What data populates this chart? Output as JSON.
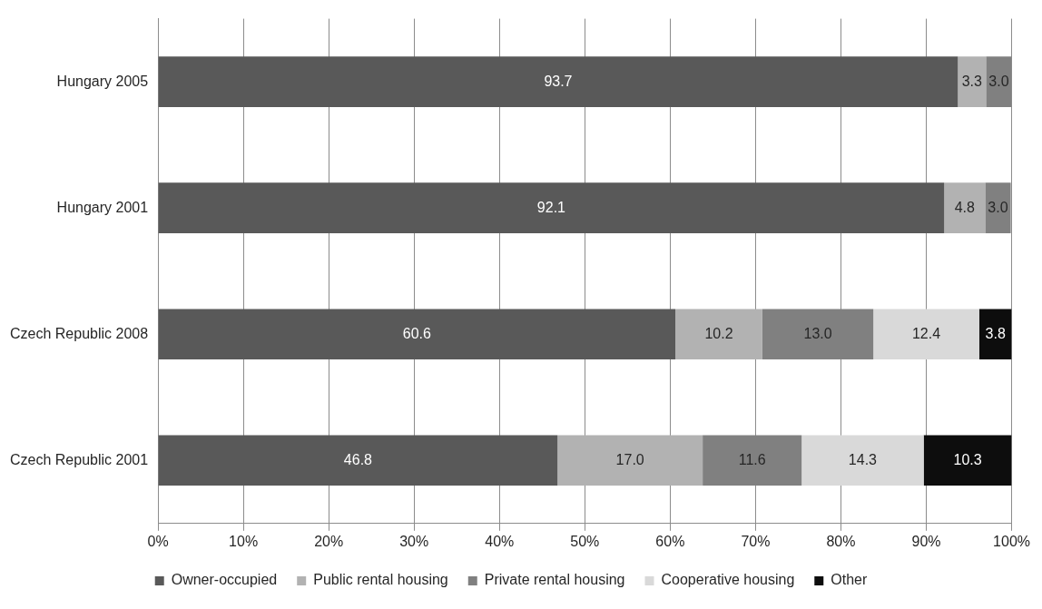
{
  "chart_data": {
    "type": "bar",
    "orientation": "horizontal",
    "stacked": true,
    "categories": [
      "Hungary 2005",
      "Hungary 2001",
      "Czech Republic 2008",
      "Czech Republic 2001"
    ],
    "series": [
      {
        "name": "Owner-occupied",
        "color": "#595959",
        "values": [
          93.7,
          92.1,
          60.6,
          46.8
        ],
        "value_labels": [
          "93.7",
          "92.1",
          "60.6",
          "46.8"
        ]
      },
      {
        "name": "Public rental housing",
        "color": "#b2b2b2",
        "values": [
          3.3,
          4.8,
          10.2,
          17.0
        ],
        "value_labels": [
          "3.3",
          "4.8",
          "10.2",
          "17.0"
        ]
      },
      {
        "name": "Private rental housing",
        "color": "#808080",
        "values": [
          3.0,
          3.0,
          13.0,
          11.6
        ],
        "value_labels": [
          "3.0",
          "3.0",
          "13.0",
          "11.6"
        ]
      },
      {
        "name": "Cooperative housing",
        "color": "#d9d9d9",
        "values": [
          null,
          null,
          12.4,
          14.3
        ],
        "value_labels": [
          null,
          null,
          "12.4",
          "14.3"
        ]
      },
      {
        "name": "Other",
        "color": "#0d0d0d",
        "values": [
          null,
          null,
          3.8,
          10.3
        ],
        "value_labels": [
          null,
          null,
          "3.8",
          "10.3"
        ]
      }
    ],
    "xlim": [
      0,
      100
    ],
    "xticks": [
      {
        "value": 0,
        "label": "0%"
      },
      {
        "value": 10,
        "label": "10%"
      },
      {
        "value": 20,
        "label": "20%"
      },
      {
        "value": 30,
        "label": "30%"
      },
      {
        "value": 40,
        "label": "40%"
      },
      {
        "value": 50,
        "label": "50%"
      },
      {
        "value": 60,
        "label": "60%"
      },
      {
        "value": 70,
        "label": "70%"
      },
      {
        "value": 80,
        "label": "80%"
      },
      {
        "value": 90,
        "label": "90%"
      },
      {
        "value": 100,
        "label": "100%"
      }
    ],
    "grid": "x",
    "legend": "bottom"
  }
}
